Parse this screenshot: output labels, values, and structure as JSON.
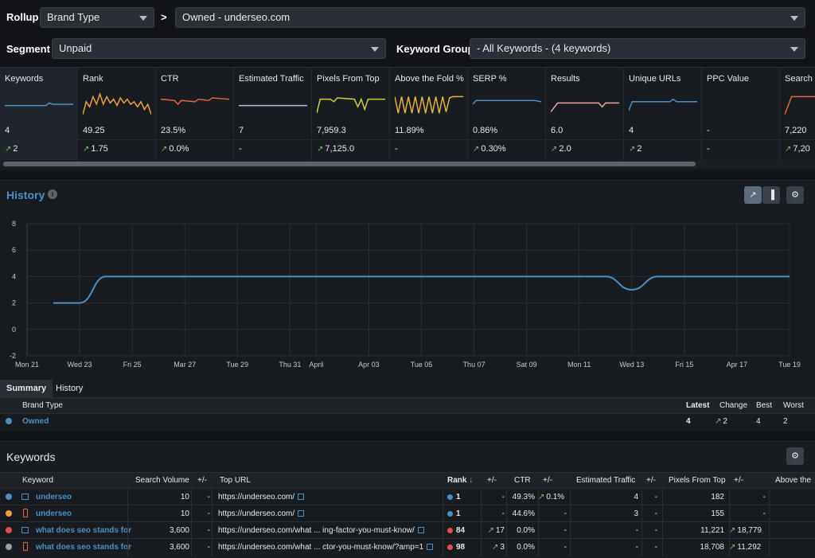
{
  "rollup": {
    "label": "Rollup",
    "select": "Brand Type",
    "arrow": ">",
    "target": "Owned - underseo.com"
  },
  "segment": {
    "label": "Segment",
    "select": "Unpaid"
  },
  "keyword_group": {
    "label": "Keyword Group",
    "select": "- All Keywords - (4 keywords)"
  },
  "metrics": [
    {
      "name": "Keywords",
      "value": "4",
      "change": "2",
      "up": true,
      "color": "#4a8fc3"
    },
    {
      "name": "Rank",
      "value": "49.25",
      "change": "1.75",
      "up": true,
      "color": "#e8a33c"
    },
    {
      "name": "CTR",
      "value": "23.5%",
      "change": "0.0%",
      "up": true,
      "color": "#e0653c"
    },
    {
      "name": "Estimated Traffic",
      "value": "7",
      "change": "-",
      "up": false,
      "color": "#a9c4dc"
    },
    {
      "name": "Pixels From Top",
      "value": "7,959.3",
      "change": "7,125.0",
      "up": true,
      "color": "#c6d23c"
    },
    {
      "name": "Above the Fold %",
      "value": "11.89%",
      "change": "-",
      "up": false,
      "color": "#e0b43c"
    },
    {
      "name": "SERP %",
      "value": "0.86%",
      "change": "0.30%",
      "up": true,
      "color": "#4a8fc3"
    },
    {
      "name": "Results",
      "value": "6.0",
      "change": "2.0",
      "up": true,
      "color": "#e8a8a0"
    },
    {
      "name": "Unique URLs",
      "value": "4",
      "change": "2",
      "up": true,
      "color": "#4a8fc3"
    },
    {
      "name": "PPC Value",
      "value": "-",
      "change": "-",
      "up": false,
      "color": "#4a8fc3"
    },
    {
      "name": "Search",
      "value": "7,220",
      "change": "7,20",
      "up": true,
      "color": "#e0653c"
    }
  ],
  "history": {
    "title": "History",
    "info_icon": "info-icon",
    "tabs": [
      "Summary",
      "History"
    ]
  },
  "chart_data": {
    "type": "line",
    "y_ticks": [
      "8",
      "6",
      "4",
      "2",
      "0",
      "-2"
    ],
    "ylim": [
      -2,
      8
    ],
    "x_ticks": [
      "Mon 21",
      "Wed 23",
      "Fri 25",
      "Mar 27",
      "Tue 29",
      "Thu 31",
      "April",
      "Apr 03",
      "Tue 05",
      "Thu 07",
      "Sat 09",
      "Mon 11",
      "Wed 13",
      "Fri 15",
      "Apr 17",
      "Tue 19"
    ],
    "series": [
      {
        "color": "#4a8fc3",
        "points": [
          [
            1,
            2
          ],
          [
            1.5,
            2
          ],
          [
            2,
            2
          ],
          [
            3,
            4
          ],
          [
            4,
            4
          ],
          [
            6,
            4
          ],
          [
            8,
            4
          ],
          [
            10,
            4
          ],
          [
            12,
            4
          ],
          [
            14,
            4
          ],
          [
            16,
            4
          ],
          [
            18,
            4
          ],
          [
            20,
            4
          ],
          [
            22,
            4
          ],
          [
            23,
            3
          ],
          [
            24,
            4
          ],
          [
            26,
            4
          ],
          [
            28,
            4
          ],
          [
            29,
            4
          ]
        ]
      }
    ],
    "x_domain": [
      0,
      29
    ],
    "x_tick_positions": [
      0,
      2,
      4,
      6,
      8,
      10,
      11,
      13,
      15,
      17,
      19,
      21,
      23,
      25,
      27,
      29
    ]
  },
  "summary": {
    "headers": {
      "brand_type": "Brand Type",
      "latest": "Latest",
      "change": "Change",
      "best": "Best",
      "worst": "Worst"
    },
    "row": {
      "name": "Owned",
      "latest": "4",
      "change": "2",
      "best": "4",
      "worst": "2",
      "color": "#4a8fc3"
    }
  },
  "keywords": {
    "title": "Keywords",
    "headers": {
      "keyword": "Keyword",
      "search_volume": "Search Volume",
      "pm1": "+/-",
      "top_url": "Top URL",
      "rank": "Rank",
      "pm2": "+/-",
      "ctr": "CTR",
      "pm3": "+/-",
      "est_traffic": "Estimated Traffic",
      "pm4": "+/-",
      "pixels": "Pixels From Top",
      "pm5": "+/-",
      "above": "Above the"
    },
    "rows": [
      {
        "dot": "#4a8fc3",
        "device": "desktop",
        "keyword": "underseo",
        "volume": "10",
        "pm1": "-",
        "url": "https://underseo.com/",
        "rank_dot": "#4a8fc3",
        "rank": "1",
        "pm2": "-",
        "ctr": "49.3%",
        "pm3": "0.1%",
        "pm3_up": true,
        "traffic": "4",
        "pm4": "-",
        "pixels": "182",
        "pm5": "-",
        "pm5_up": false
      },
      {
        "dot": "#e8a33c",
        "device": "mobile",
        "keyword": "underseo",
        "volume": "10",
        "pm1": "-",
        "url": "https://underseo.com/",
        "rank_dot": "#4a8fc3",
        "rank": "1",
        "pm2": "-",
        "ctr": "44.6%",
        "pm3": "-",
        "pm3_up": false,
        "traffic": "3",
        "pm4": "-",
        "pixels": "155",
        "pm5": "-",
        "pm5_up": false
      },
      {
        "dot": "#e05050",
        "device": "desktop",
        "keyword": "what does seo stands for",
        "volume": "3,600",
        "pm1": "-",
        "url": "https://underseo.com/what ... ing-factor-you-must-know/",
        "rank_dot": "#e05050",
        "rank": "84",
        "pm2": "17",
        "pm2_up": true,
        "ctr": "0.0%",
        "pm3": "-",
        "pm3_up": false,
        "traffic": "-",
        "pm4": "-",
        "pixels": "11,221",
        "pm5": "18,779",
        "pm5_up": true
      },
      {
        "dot": "#9a9fa6",
        "device": "mobile",
        "keyword": "what does seo stands for",
        "volume": "3,600",
        "pm1": "-",
        "url": "https://underseo.com/what ... ctor-you-must-know/?amp=1",
        "rank_dot": "#e05050",
        "rank": "98",
        "pm2": "3",
        "pm2_up": true,
        "ctr": "0.0%",
        "pm3": "-",
        "pm3_up": false,
        "traffic": "-",
        "pm4": "-",
        "pixels": "18,708",
        "pm5": "11,292",
        "pm5_up": true
      }
    ]
  }
}
